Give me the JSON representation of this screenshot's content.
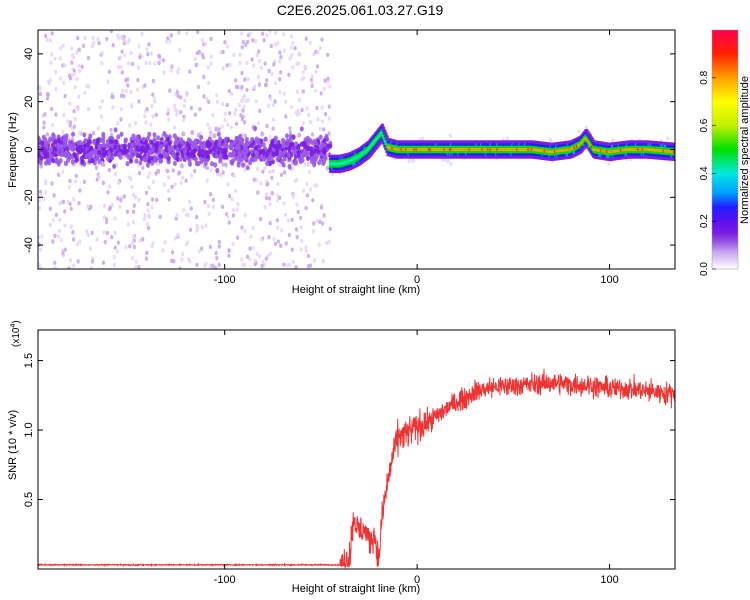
{
  "title": "C2E6.2025.061.03.27.G19",
  "colors": {
    "snr_line": "#ee3333",
    "colormap": [
      "#ffffff",
      "#e8d8f8",
      "#c9a8ef",
      "#9a5ae6",
      "#7a1ee0",
      "#5a10f0",
      "#2020ff",
      "#00a0ff",
      "#00e8e0",
      "#00e000",
      "#c0f000",
      "#ffff00",
      "#ffa000",
      "#ff2000",
      "#ff0050"
    ]
  },
  "chart_data": [
    {
      "type": "heatmap",
      "xlabel": "Height of straight line (km)",
      "ylabel": "Frequency (Hz)",
      "xlim": [
        -197,
        134
      ],
      "ylim": [
        -50,
        50
      ],
      "xticks": [
        {
          "value": -100,
          "label": "-100"
        },
        {
          "value": 0,
          "label": "0"
        },
        {
          "value": 100,
          "label": "100"
        }
      ],
      "yticks": [
        {
          "value": 40,
          "label": "40"
        },
        {
          "value": 20,
          "label": "20"
        },
        {
          "value": 0,
          "label": "0"
        },
        {
          "value": -20,
          "label": "-20"
        },
        {
          "value": -40,
          "label": "-40"
        }
      ],
      "grid": false,
      "colorbar": {
        "label": "Normalized spectral amplitude",
        "range": [
          0,
          1
        ],
        "ticks": [
          {
            "value": 0.0,
            "label": "0.0"
          },
          {
            "value": 0.2,
            "label": "0.2"
          },
          {
            "value": 0.4,
            "label": "0.4"
          },
          {
            "value": 0.6,
            "label": "0.6"
          },
          {
            "value": 0.8,
            "label": "0.8"
          }
        ]
      },
      "signal_trace": {
        "x": [
          -45,
          -40,
          -35,
          -30,
          -25,
          -20,
          -18,
          -15,
          -10,
          -5,
          0,
          10,
          20,
          30,
          40,
          50,
          60,
          70,
          80,
          85,
          88,
          92,
          100,
          110,
          120,
          134
        ],
        "freq": [
          -6,
          -6,
          -5,
          -3,
          0,
          5,
          7,
          1,
          0,
          0,
          0,
          0,
          0,
          0,
          0,
          0,
          0,
          -1,
          0,
          2,
          5,
          0,
          -1,
          0,
          0,
          -1
        ]
      },
      "noise_region": {
        "x_from": -197,
        "x_to": -45,
        "center_freq": 0
      }
    },
    {
      "type": "line",
      "xlabel": "Height of straight line (km)",
      "ylabel": "SNR (10 * v/v)",
      "yscale_label": "(x10",
      "yscale_exp": "4",
      "xlim": [
        -197,
        134
      ],
      "ylim": [
        0,
        1.72
      ],
      "xticks": [
        {
          "value": -100,
          "label": "-100"
        },
        {
          "value": 0,
          "label": "0"
        },
        {
          "value": 100,
          "label": "100"
        }
      ],
      "yticks": [
        {
          "value": 0.5,
          "label": "0.5"
        },
        {
          "value": 1.0,
          "label": "1.0"
        },
        {
          "value": 1.5,
          "label": "1.5"
        }
      ],
      "grid": false,
      "series": [
        {
          "x": [
            -197,
            -150,
            -100,
            -50,
            -38,
            -35,
            -33,
            -30,
            -28,
            -25,
            -22,
            -20,
            -18,
            -15,
            -12,
            -10,
            -5,
            0,
            5,
            10,
            15,
            20,
            25,
            30,
            40,
            50,
            60,
            70,
            80,
            90,
            100,
            110,
            120,
            134
          ],
          "values": [
            0.03,
            0.03,
            0.03,
            0.03,
            0.03,
            0.1,
            0.38,
            0.25,
            0.3,
            0.2,
            0.25,
            0.05,
            0.4,
            0.65,
            0.85,
            0.95,
            0.98,
            1.02,
            1.05,
            1.1,
            1.15,
            1.2,
            1.23,
            1.28,
            1.31,
            1.32,
            1.33,
            1.34,
            1.33,
            1.32,
            1.3,
            1.3,
            1.28,
            1.26
          ]
        }
      ]
    }
  ]
}
